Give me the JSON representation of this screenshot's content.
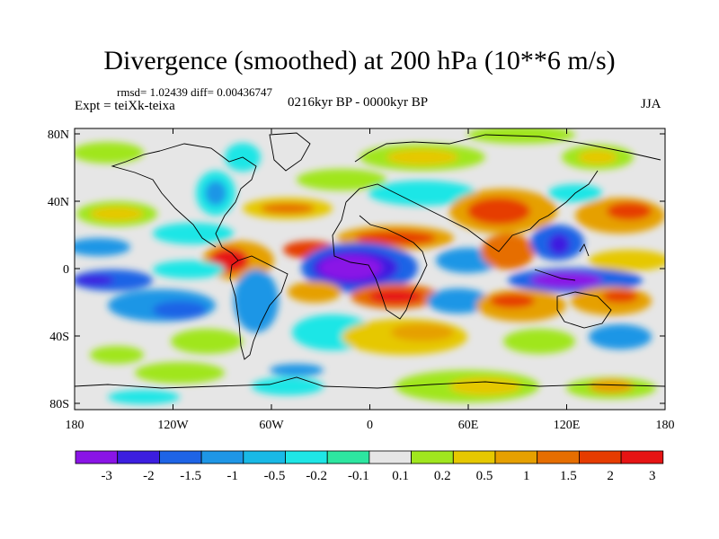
{
  "title": "Divergence (smoothed) at 200 hPa (10**6 m/s)",
  "stats": "rmsd= 1.02439 diff= 0.00436747",
  "experiment": "Expt = teiXk-teixa",
  "period": "0216kyr BP - 0000kyr BP",
  "season": "JJA",
  "lat_ticks": [
    "80N",
    "40N",
    "0",
    "40S",
    "80S"
  ],
  "lon_ticks": [
    "180",
    "120W",
    "60W",
    "0",
    "60E",
    "120E",
    "180"
  ],
  "colorbar": {
    "labels": [
      "-3",
      "-2",
      "-1.5",
      "-1",
      "-0.5",
      "-0.2",
      "-0.1",
      "0.1",
      "0.2",
      "0.5",
      "1",
      "1.5",
      "2",
      "3"
    ],
    "colors": [
      "#8a14e6",
      "#3c1ee0",
      "#1e64e6",
      "#1e96e6",
      "#19b9e6",
      "#1ee6e6",
      "#2de6a0",
      "#e6e6e6",
      "#a0e61e",
      "#e6c800",
      "#e6a000",
      "#e66e00",
      "#e63c00",
      "#e61414"
    ]
  },
  "colors": {
    "land_line": "#000000",
    "background": "#e6e6e6"
  }
}
